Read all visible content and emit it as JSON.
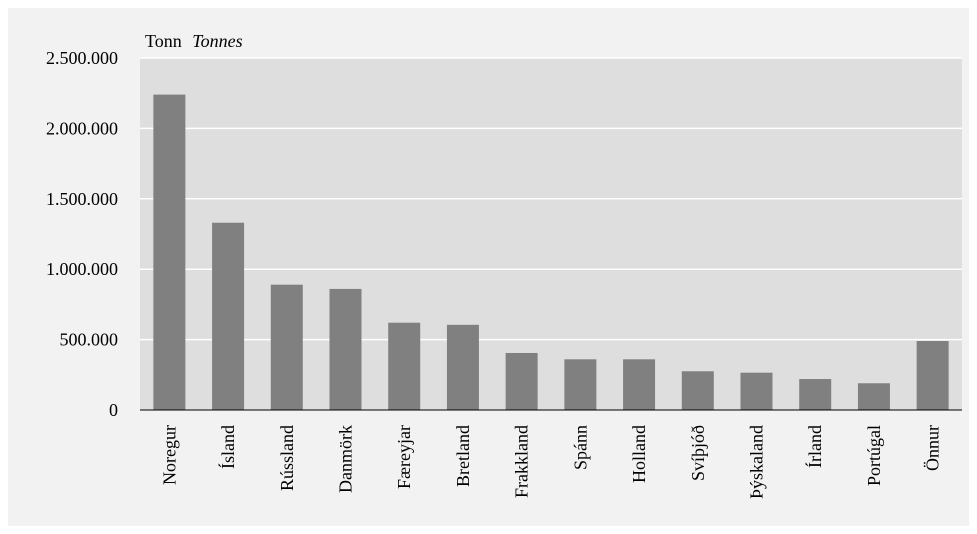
{
  "chart_data": {
    "type": "bar",
    "unit_label": "Tonn",
    "unit_label_en": "Tonnes",
    "categories": [
      "Noregur",
      "Ísland",
      "Rússland",
      "Danmörk",
      "Færeyjar",
      "Bretland",
      "Frakkland",
      "Spánn",
      "Holland",
      "Svíþjóð",
      "Þýskaland",
      "Írland",
      "Portúgal",
      "Önnur"
    ],
    "values": [
      2240000,
      1330000,
      890000,
      860000,
      620000,
      605000,
      405000,
      360000,
      360000,
      275000,
      265000,
      220000,
      190000,
      490000
    ],
    "y_ticks": [
      "0",
      "500.000",
      "1.000.000",
      "1.500.000",
      "2.000.000",
      "2.500.000"
    ],
    "y_tick_values": [
      0,
      500000,
      1000000,
      1500000,
      2000000,
      2500000
    ],
    "ylim": [
      0,
      2500000
    ],
    "grid": true,
    "colors": {
      "bar": "#808080",
      "plot_bg": "#dedede",
      "frame_bg": "#f2f2f2",
      "grid": "#ffffff"
    }
  }
}
